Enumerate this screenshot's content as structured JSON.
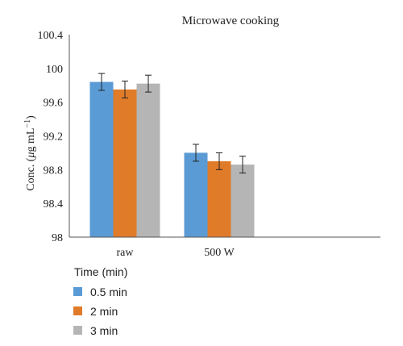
{
  "chart_data": {
    "type": "bar",
    "title": "Microwave cooking",
    "ylabel_prefix": "Conc. (",
    "ylabel_mu": "μ",
    "ylabel_unit": "g mL",
    "ylabel_exp": "−1",
    "ylabel_suffix": ")",
    "categories": [
      "raw",
      "500 W"
    ],
    "ylim": [
      98,
      100.4
    ],
    "yticks": [
      "98",
      "98.4",
      "98.8",
      "99.2",
      "99.6",
      "100",
      "100.4"
    ],
    "grid": false,
    "legend_title": "Time (min)",
    "legend_position": "bottom-left",
    "series": [
      {
        "name": "0.5 min",
        "color": "#5b9bd5",
        "values": [
          99.84,
          99.0
        ],
        "errors": [
          0.1,
          0.1
        ]
      },
      {
        "name": "2 min",
        "color": "#e07b2a",
        "values": [
          99.75,
          98.9
        ],
        "errors": [
          0.1,
          0.1
        ]
      },
      {
        "name": "3 min",
        "color": "#b5b5b5",
        "values": [
          99.82,
          98.86
        ],
        "errors": [
          0.1,
          0.1
        ]
      }
    ]
  }
}
